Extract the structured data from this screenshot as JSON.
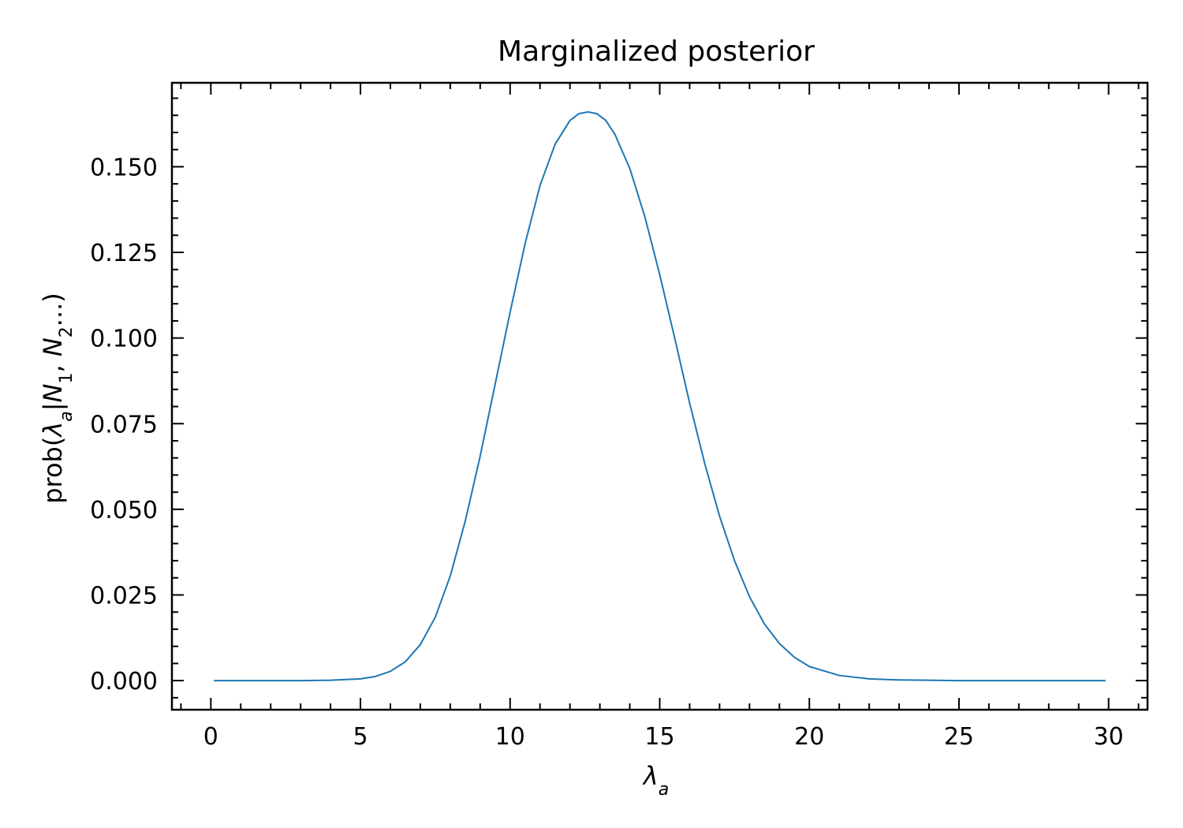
{
  "chart_data": {
    "type": "line",
    "title": "Marginalized posterior",
    "xlabel": "λa",
    "xlabel_parts": {
      "base": "λ",
      "sub": "a"
    },
    "ylabel": "prob(λa|N1, N2...)",
    "ylabel_parts": [
      {
        "t": "prob("
      },
      {
        "t": "λ",
        "i": true
      },
      {
        "t": "a",
        "sub": true,
        "i": true
      },
      {
        "t": "|"
      },
      {
        "t": "N",
        "i": true
      },
      {
        "t": "1",
        "sub": true
      },
      {
        "t": ", "
      },
      {
        "t": "N",
        "i": true
      },
      {
        "t": "2",
        "sub": true
      },
      {
        "t": "...)"
      }
    ],
    "xlim": [
      -1.3,
      31.3
    ],
    "ylim": [
      -0.0085,
      0.1745
    ],
    "xticks": [
      0,
      5,
      10,
      15,
      20,
      25,
      30
    ],
    "xtick_labels": [
      "0",
      "5",
      "10",
      "15",
      "20",
      "25",
      "30"
    ],
    "yticks": [
      0.0,
      0.025,
      0.05,
      0.075,
      0.1,
      0.125,
      0.15
    ],
    "ytick_labels": [
      "0.000",
      "0.025",
      "0.050",
      "0.075",
      "0.100",
      "0.125",
      "0.150"
    ],
    "grid": false,
    "series": [
      {
        "color": "#1f77b4",
        "x": [
          0.1,
          1,
          2,
          3,
          4,
          5,
          5.5,
          6,
          6.5,
          7,
          7.5,
          8,
          8.5,
          9,
          9.5,
          10,
          10.5,
          11,
          11.5,
          12,
          12.3,
          12.6,
          12.9,
          13.2,
          13.5,
          14,
          14.5,
          15,
          15.5,
          16,
          16.5,
          17,
          17.5,
          18,
          18.5,
          19,
          19.5,
          20,
          21,
          22,
          23,
          24,
          25,
          26,
          27,
          28,
          29,
          29.9
        ],
        "y": [
          0,
          0,
          0,
          0,
          0.0001,
          0.0005,
          0.0012,
          0.0027,
          0.0055,
          0.0105,
          0.0185,
          0.0305,
          0.0465,
          0.0655,
          0.0865,
          0.1075,
          0.1275,
          0.1445,
          0.1565,
          0.1635,
          0.1655,
          0.166,
          0.1655,
          0.1635,
          0.1595,
          0.1495,
          0.1355,
          0.1185,
          0.1,
          0.081,
          0.0635,
          0.048,
          0.035,
          0.0245,
          0.0165,
          0.0108,
          0.0068,
          0.0041,
          0.0015,
          0.0005,
          0.0002,
          0.0001,
          0,
          0,
          0,
          0,
          0,
          0
        ]
      }
    ]
  }
}
